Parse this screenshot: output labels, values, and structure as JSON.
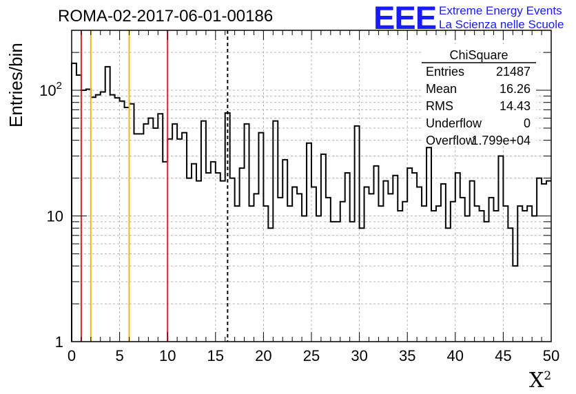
{
  "chart_data": {
    "type": "histogram",
    "title": "ROMA-02-2017-06-01-00186",
    "xlabel": "X",
    "xlabel_superscript": "2",
    "ylabel": "Entries/bin",
    "xlim": [
      0,
      50
    ],
    "ylim": [
      1,
      300
    ],
    "yscale": "log",
    "grid": true,
    "bin_width": 0.5,
    "bin_start": 0,
    "x_ticks": [
      "0",
      "5",
      "10",
      "15",
      "20",
      "25",
      "30",
      "35",
      "40",
      "45",
      "50"
    ],
    "y_ticks": [
      {
        "value": 1,
        "base": "1",
        "exp": ""
      },
      {
        "value": 10,
        "base": "10",
        "exp": ""
      },
      {
        "value": 100,
        "base": "10",
        "exp": "2"
      }
    ],
    "values": [
      164,
      132,
      100,
      102,
      88,
      92,
      97,
      154,
      92,
      87,
      82,
      73,
      78,
      45,
      45,
      54,
      60,
      50,
      65,
      27,
      41,
      54,
      41,
      46,
      20,
      26,
      19,
      57,
      22,
      27,
      22,
      19,
      66,
      20,
      12,
      24,
      54,
      12,
      15,
      46,
      12,
      8,
      57,
      14,
      28,
      12,
      17,
      15,
      10,
      38,
      17,
      10,
      31,
      14,
      9,
      9,
      13,
      22,
      9,
      52,
      8,
      17,
      15,
      25,
      12,
      19,
      15,
      21,
      11,
      13,
      24,
      22,
      17,
      12,
      35,
      11,
      12,
      18,
      8,
      13,
      22,
      14,
      10,
      19,
      12,
      11,
      9,
      14,
      11,
      30,
      12,
      8,
      4,
      12,
      11,
      12,
      10,
      20,
      18,
      19
    ],
    "vertical_lines": [
      {
        "x": 1,
        "color": "#e8202a",
        "style": "solid"
      },
      {
        "x": 2,
        "color": "#f0b81a",
        "style": "solid"
      },
      {
        "x": 6,
        "color": "#f0b81a",
        "style": "solid"
      },
      {
        "x": 10,
        "color": "#e8202a",
        "style": "solid"
      },
      {
        "x": 16.26,
        "color": "#000000",
        "style": "dashed"
      }
    ],
    "stats_box": {
      "title": "ChiSquare",
      "rows": [
        {
          "label": "Entries",
          "value": "21487"
        },
        {
          "label": "Mean",
          "value": "16.26"
        },
        {
          "label": "RMS",
          "value": "14.43"
        },
        {
          "label": "Underflow",
          "value": "0"
        },
        {
          "label": "Overflow",
          "value": "1.799e+04"
        }
      ]
    }
  },
  "logo": {
    "mark": "EEE",
    "line1": "Extreme Energy Events",
    "line2": "La Scienza nelle Scuole"
  },
  "colors": {
    "logo": "#1a1aff",
    "red_line": "#e8202a",
    "yellow_line": "#f0b81a",
    "grid": "#b4b4b4"
  }
}
